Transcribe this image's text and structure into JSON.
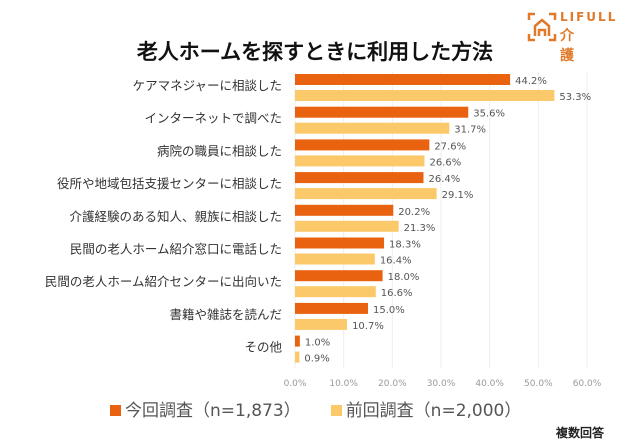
{
  "logo": {
    "brand": "LIFULL",
    "sub": "介護"
  },
  "chart_data": {
    "type": "bar",
    "orientation": "horizontal",
    "title": "老人ホームを探すときに利用した方法",
    "categories": [
      "ケアマネジャーに相談した",
      "インターネットで調べた",
      "病院の職員に相談した",
      "役所や地域包括支援センターに相談した",
      "介護経験のある知人、親族に相談した",
      "民間の老人ホーム紹介窓口に電話した",
      "民間の老人ホーム紹介センターに出向いた",
      "書籍や雑誌を読んだ",
      "その他"
    ],
    "series": [
      {
        "name": "今回調査（n=1,873）",
        "color": "#e8620f",
        "values": [
          44.2,
          35.6,
          27.6,
          26.4,
          20.2,
          18.3,
          18.0,
          15.0,
          1.0
        ]
      },
      {
        "name": "前回調査（n=2,000）",
        "color": "#fcc96a",
        "values": [
          53.3,
          31.7,
          26.6,
          29.1,
          21.3,
          16.4,
          16.6,
          10.7,
          0.9
        ]
      }
    ],
    "xlim": [
      0,
      60
    ],
    "ticks": [
      "0.0%",
      "10.0%",
      "20.0%",
      "30.0%",
      "40.0%",
      "50.0%",
      "60.0%"
    ],
    "grid": true,
    "legend": "bottom",
    "note": "複数回答"
  }
}
